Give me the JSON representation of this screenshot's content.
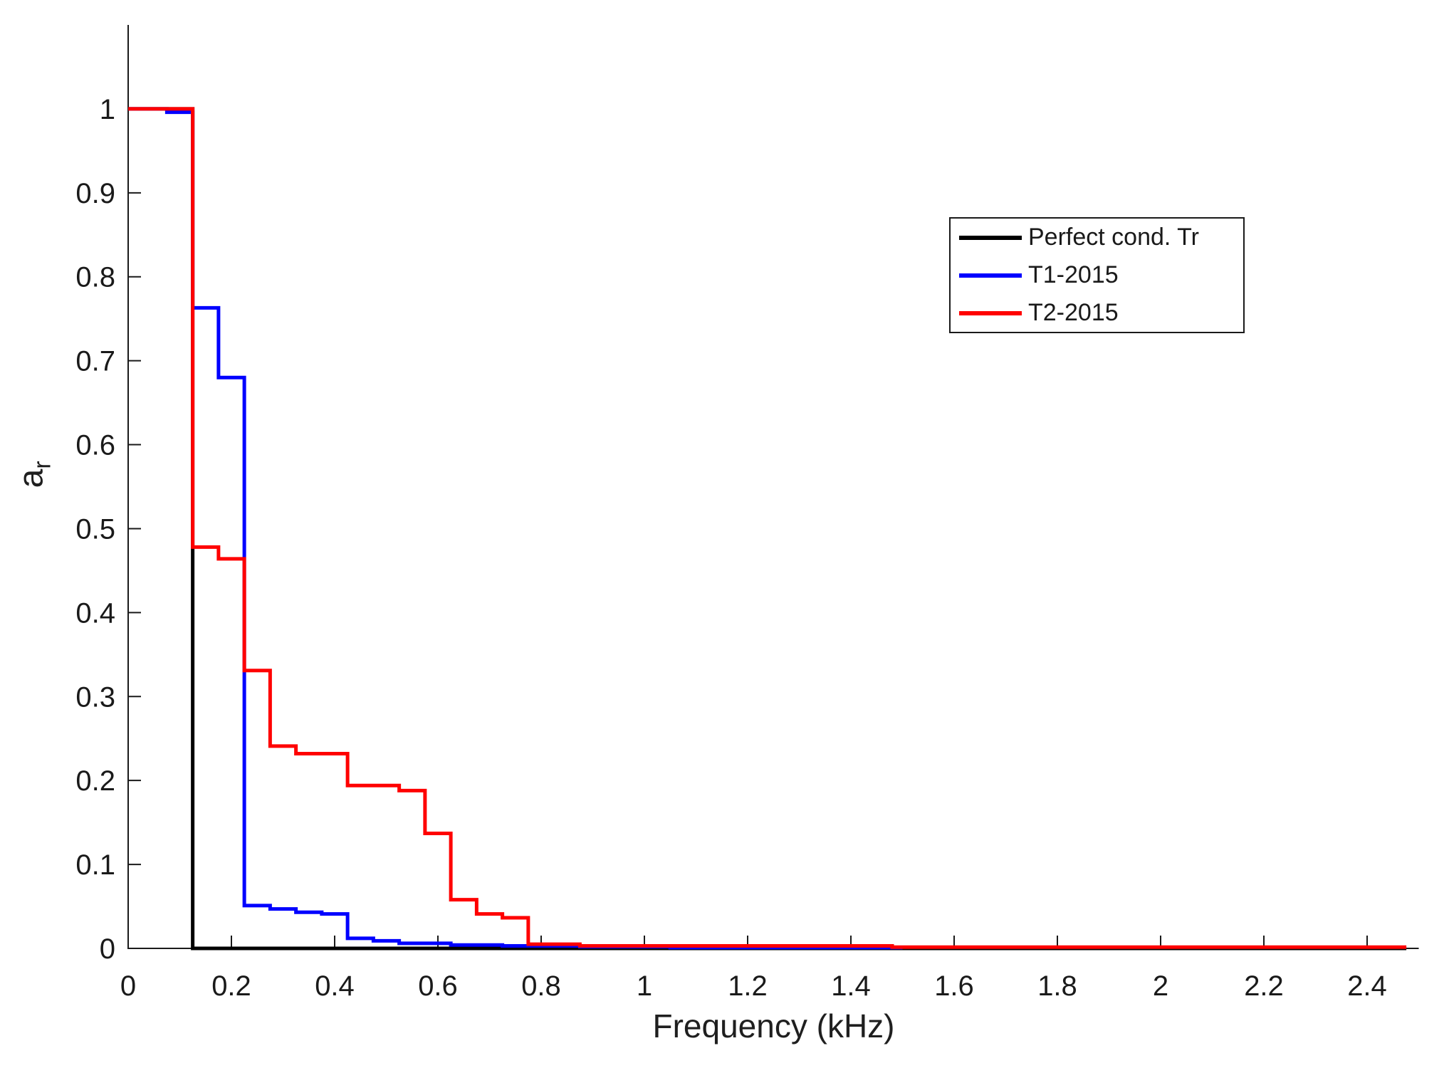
{
  "figure": {
    "background": "#ffffff",
    "axis_color": "#1a1a1a"
  },
  "chart_data": {
    "type": "line",
    "subtype": "stairs",
    "title": "",
    "xlabel": "Frequency (kHz)",
    "ylabel_main": "a",
    "ylabel_sub": "r",
    "grid": false,
    "legend_position": "top-right-inside",
    "xlim": [
      0,
      2.5
    ],
    "ylim": [
      0,
      1.1
    ],
    "xticks": {
      "values": [
        0,
        0.2,
        0.4,
        0.6,
        0.8,
        1,
        1.2,
        1.4,
        1.6,
        1.8,
        2,
        2.2,
        2.4
      ],
      "labels": [
        "0",
        "0.2",
        "0.4",
        "0.6",
        "0.8",
        "1",
        "1.2",
        "1.4",
        "1.6",
        "1.8",
        "2",
        "2.2",
        "2.4"
      ]
    },
    "yticks": {
      "values": [
        0,
        0.1,
        0.2,
        0.3,
        0.4,
        0.5,
        0.6,
        0.7,
        0.8,
        0.9,
        1
      ],
      "labels": [
        "0",
        "0.1",
        "0.2",
        "0.3",
        "0.4",
        "0.5",
        "0.6",
        "0.7",
        "0.8",
        "0.9",
        "1"
      ]
    },
    "series": [
      {
        "name": "Perfect cond. Tr",
        "color": "#000000",
        "step_points": [
          [
            0,
            1
          ],
          [
            0.125,
            0
          ],
          [
            2.476,
            0
          ]
        ]
      },
      {
        "name": "T1-2015",
        "color": "#0000ff",
        "step_points": [
          [
            0,
            1
          ],
          [
            0.075,
            0.996
          ],
          [
            0.125,
            0.763
          ],
          [
            0.175,
            0.68
          ],
          [
            0.225,
            0.051
          ],
          [
            0.275,
            0.047
          ],
          [
            0.325,
            0.043
          ],
          [
            0.375,
            0.041
          ],
          [
            0.425,
            0.012
          ],
          [
            0.475,
            0.009
          ],
          [
            0.525,
            0.006
          ],
          [
            0.625,
            0.004
          ],
          [
            0.725,
            0.003
          ],
          [
            0.875,
            0.002
          ],
          [
            1.05,
            0.001
          ],
          [
            1.5,
            0.001
          ]
        ]
      },
      {
        "name": "T2-2015",
        "color": "#ff0000",
        "step_points": [
          [
            0,
            1
          ],
          [
            0.125,
            0.478
          ],
          [
            0.175,
            0.464
          ],
          [
            0.225,
            0.331
          ],
          [
            0.275,
            0.241
          ],
          [
            0.325,
            0.232
          ],
          [
            0.425,
            0.194
          ],
          [
            0.525,
            0.188
          ],
          [
            0.575,
            0.137
          ],
          [
            0.625,
            0.058
          ],
          [
            0.675,
            0.041
          ],
          [
            0.725,
            0.0365
          ],
          [
            0.775,
            0.005
          ],
          [
            0.875,
            0.003
          ],
          [
            1.48,
            0.0015
          ],
          [
            2.476,
            0.0015
          ]
        ]
      }
    ]
  }
}
